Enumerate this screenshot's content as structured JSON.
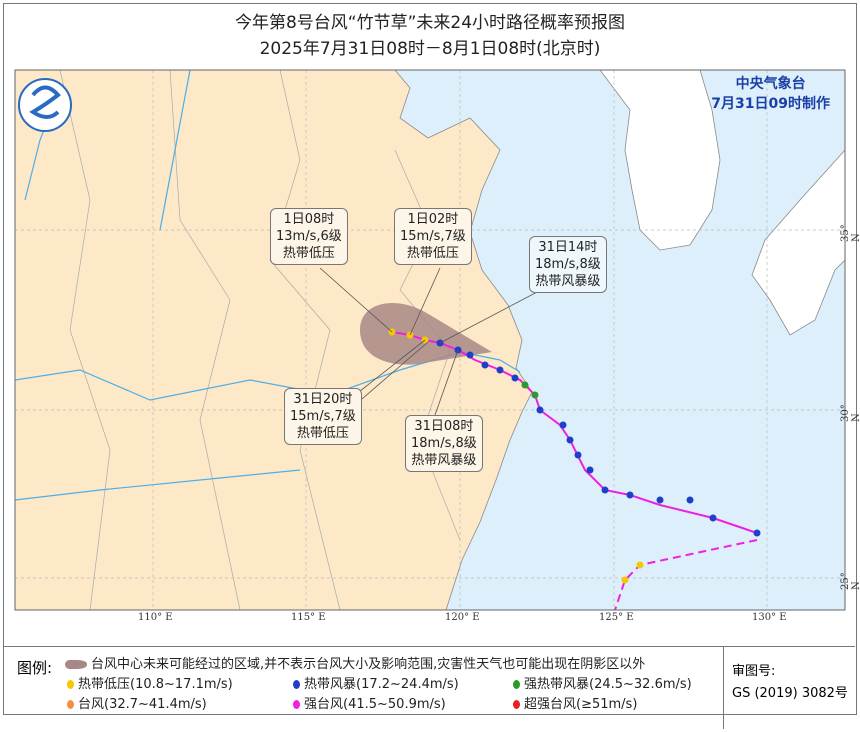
{
  "title": "今年第8号台风“竹节草”未来24小时路径概率预报图",
  "subtitle": "2025年7月31日08时－8月1日08时(北京时)",
  "agency": {
    "name": "中央气象台",
    "issued": "7月31日09时制作"
  },
  "longitude_ticks": [
    "110° E",
    "115° E",
    "120° E",
    "125° E",
    "130° E"
  ],
  "latitude_ticks": [
    "35° N",
    "30° N",
    "25° N"
  ],
  "annotations": [
    {
      "time": "1日08时",
      "wind": "13m/s,6级",
      "level": "热带低压"
    },
    {
      "time": "1日02时",
      "wind": "15m/s,7级",
      "level": "热带低压"
    },
    {
      "time": "31日14时",
      "wind": "18m/s,8级",
      "level": "热带风暴级"
    },
    {
      "time": "31日20时",
      "wind": "15m/s,7级",
      "level": "热带低压"
    },
    {
      "time": "31日08时",
      "wind": "18m/s,8级",
      "level": "热带风暴级"
    }
  ],
  "legend": {
    "title": "图例:",
    "cone": "台风中心未来可能经过的区域,并不表示台风大小及影响范围,灾害性天气也可能出现在阴影区以外",
    "items": [
      {
        "label": "热带低压(10.8~17.1m/s)",
        "color": "#f5c800"
      },
      {
        "label": "热带风暴(17.2~24.4m/s)",
        "color": "#1f3fc8"
      },
      {
        "label": "强热带风暴(24.5~32.6m/s)",
        "color": "#2a9a2a"
      },
      {
        "label": "台风(32.7~41.4m/s)",
        "color": "#f59040"
      },
      {
        "label": "强台风(41.5~50.9m/s)",
        "color": "#f020e0"
      },
      {
        "label": "超强台风(≥51m/s)",
        "color": "#e82020"
      }
    ],
    "review_label": "审图号:",
    "review_number": "GS (2019) 3082号"
  },
  "colors": {
    "land": "#fde8c8",
    "sea": "#ddeffa",
    "foreign_land": "#ffffff",
    "track": "#f020e0",
    "cone": "#a88886"
  }
}
